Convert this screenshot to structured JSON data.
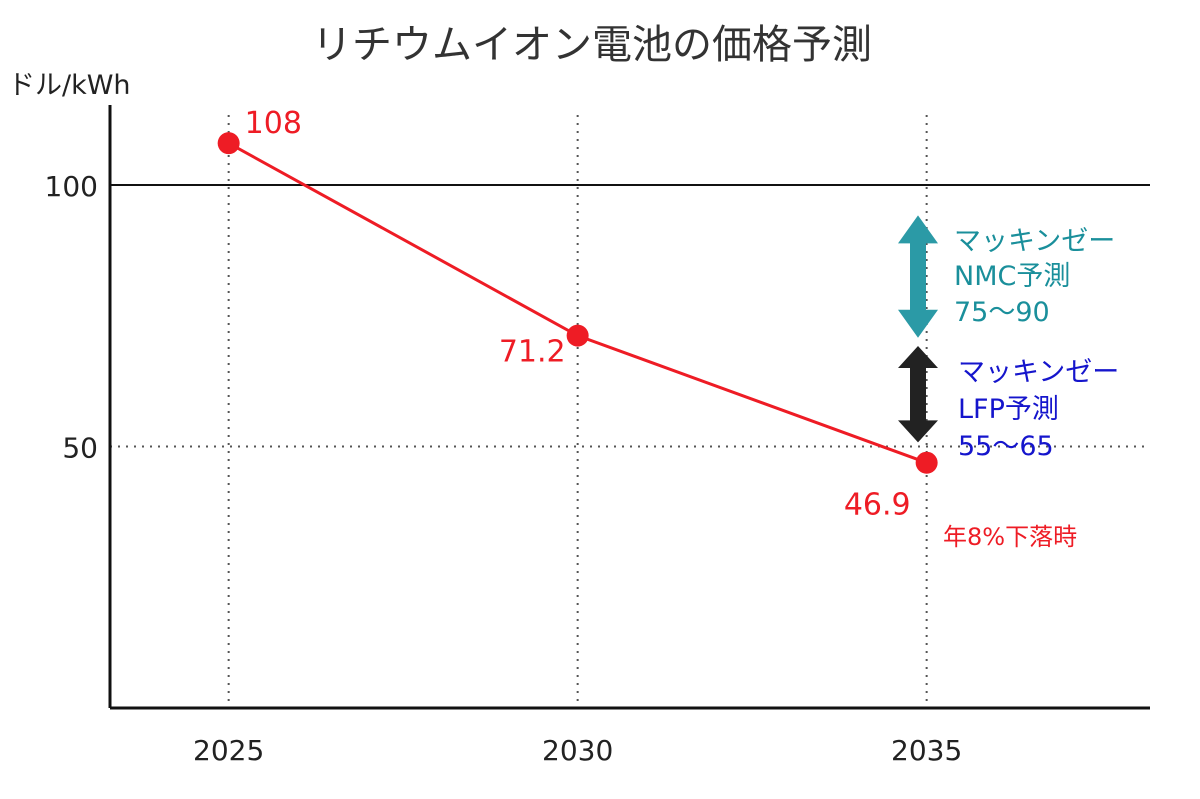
{
  "chart_data": {
    "type": "line",
    "title": "リチウムイオン電池の価格予測",
    "ylabel": "ドル/kWh",
    "xlabel": "",
    "xlim": [
      2023.3,
      2038.2
    ],
    "ylim": [
      0,
      115.3
    ],
    "x_ticks": [
      2025,
      2030,
      2035
    ],
    "x_tick_labels": [
      "2025",
      "2030",
      "2035"
    ],
    "y_ticks": [
      50,
      100
    ],
    "y_tick_labels": [
      "50",
      "100"
    ],
    "grid": "dotted",
    "series": [
      {
        "color": "#ee1c25",
        "x": [
          2025,
          2030,
          2035
        ],
        "values": [
          108,
          71.2,
          46.9
        ],
        "labels": [
          "108",
          "71.2",
          "46.9"
        ]
      }
    ],
    "annotations": {
      "nmc": {
        "lines": [
          "マッキンゼー",
          "NMC予測",
          "75〜90"
        ],
        "range": [
          75,
          90
        ],
        "color": "#1a8f9b",
        "arrow_color": "#2b9aa6"
      },
      "lfp": {
        "lines": [
          "マッキンゼー",
          "LFP予測",
          "55〜65"
        ],
        "range": [
          55,
          65
        ],
        "color": "#1515cc",
        "arrow_color": "#222222"
      },
      "note": {
        "text": "年8%下落時",
        "color": "#ee1c25"
      }
    }
  }
}
